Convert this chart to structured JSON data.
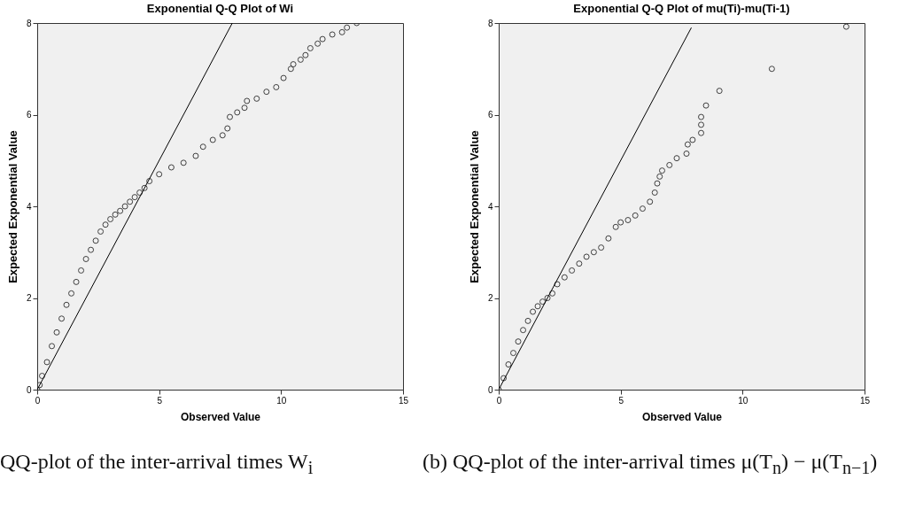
{
  "chart_data": [
    {
      "type": "scatter",
      "title": "Exponential Q-Q Plot of Wi",
      "xlabel": "Observed Value",
      "ylabel": "Expected Exponential Value",
      "xlim": [
        0,
        15
      ],
      "ylim": [
        0,
        8
      ],
      "xticks": [
        0,
        5,
        10,
        15
      ],
      "yticks": [
        0,
        2,
        4,
        6,
        8
      ],
      "line_style": "solid",
      "annotations": [
        "QQ-plot of the inter-arrival times W$_{i}$"
      ],
      "series": [
        {
          "marker": "circle",
          "color": "#404040",
          "x": [
            0,
            0.1,
            0.2,
            0.4,
            0.6,
            0.8,
            1.0,
            1.2,
            1.4,
            1.6,
            1.8,
            2.0,
            2.2,
            2.4,
            2.6,
            2.8,
            3.0,
            3.2,
            3.4,
            3.6,
            3.8,
            4.0,
            4.2,
            4.4,
            4.6,
            5.0,
            5.5,
            6.0,
            6.5,
            6.8,
            7.2,
            7.6,
            7.8,
            7.9,
            8.2,
            8.5,
            8.6,
            9.0,
            9.4,
            9.8,
            10.1,
            10.4,
            10.5,
            10.8,
            11.0,
            11.2,
            11.5,
            11.7,
            12.1,
            12.5,
            12.7,
            13.1
          ],
          "values": [
            0,
            0.1,
            0.3,
            0.6,
            0.95,
            1.25,
            1.55,
            1.85,
            2.1,
            2.35,
            2.6,
            2.85,
            3.05,
            3.25,
            3.45,
            3.6,
            3.72,
            3.82,
            3.9,
            4.0,
            4.1,
            4.2,
            4.3,
            4.4,
            4.55,
            4.7,
            4.85,
            4.95,
            5.1,
            5.3,
            5.45,
            5.55,
            5.7,
            5.95,
            6.05,
            6.15,
            6.3,
            6.35,
            6.5,
            6.6,
            6.8,
            7.0,
            7.1,
            7.2,
            7.3,
            7.45,
            7.55,
            7.65,
            7.75,
            7.8,
            7.9,
            8.0
          ]
        },
        {
          "type": "line",
          "marker": "none",
          "color": "#000000",
          "x": [
            0,
            8
          ],
          "values": [
            0,
            8
          ]
        }
      ]
    },
    {
      "type": "scatter",
      "title": "Exponential Q-Q Plot of mu(Ti)-mu(Ti-1)",
      "xlabel": "Observed Value",
      "ylabel": "Expected Exponential Value",
      "xlim": [
        0,
        15
      ],
      "ylim": [
        0,
        8
      ],
      "xticks": [
        0,
        5,
        10,
        15
      ],
      "yticks": [
        0,
        2,
        4,
        6,
        8
      ],
      "line_style": "solid",
      "annotations": [
        "(b) QQ-plot of the inter-arrival times μ(T$_{n}$) − μ(T$_{n−1}$)"
      ],
      "series": [
        {
          "marker": "circle",
          "color": "#404040",
          "x": [
            0,
            0.2,
            0.4,
            0.6,
            0.8,
            1.0,
            1.2,
            1.4,
            1.6,
            1.8,
            2.0,
            2.2,
            2.4,
            2.7,
            3.0,
            3.3,
            3.6,
            3.9,
            4.2,
            4.5,
            4.8,
            5.0,
            5.3,
            5.6,
            5.9,
            6.2,
            6.4,
            6.5,
            6.6,
            6.7,
            7.0,
            7.3,
            7.7,
            7.75,
            7.95,
            8.3,
            8.3,
            8.3,
            8.5,
            9.05,
            11.2,
            14.25
          ],
          "values": [
            0,
            0.25,
            0.55,
            0.8,
            1.05,
            1.3,
            1.5,
            1.7,
            1.82,
            1.92,
            2.0,
            2.1,
            2.3,
            2.45,
            2.6,
            2.75,
            2.9,
            3.0,
            3.1,
            3.3,
            3.55,
            3.65,
            3.7,
            3.8,
            3.95,
            4.1,
            4.3,
            4.5,
            4.65,
            4.78,
            4.9,
            5.05,
            5.15,
            5.35,
            5.45,
            5.6,
            5.78,
            5.95,
            6.2,
            6.52,
            7.0,
            7.92
          ]
        },
        {
          "type": "line",
          "marker": "none",
          "color": "#000000",
          "x": [
            0,
            7.9
          ],
          "values": [
            0,
            7.9
          ]
        }
      ]
    }
  ]
}
